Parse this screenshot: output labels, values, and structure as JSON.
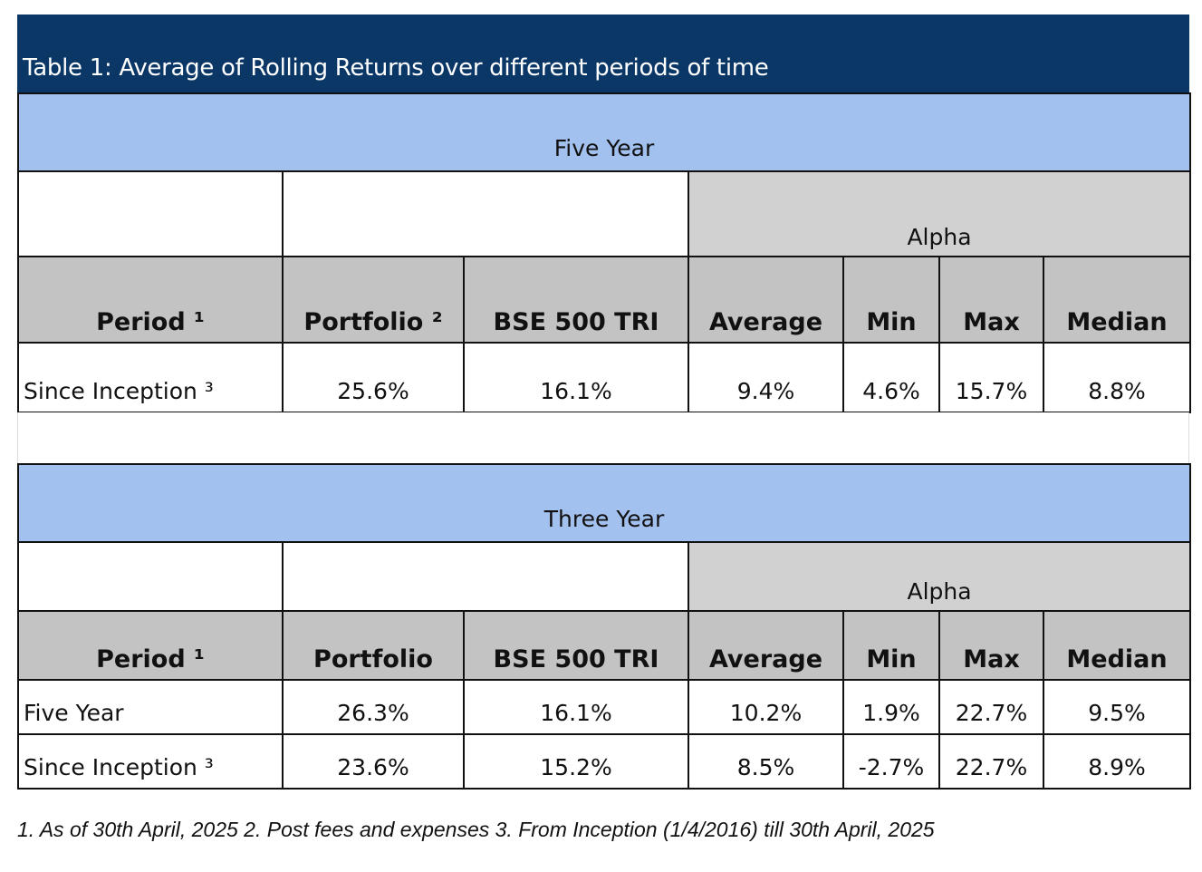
{
  "title": "Table 1: Average of Rolling Returns over different periods of time",
  "five_year": {
    "band_label": "Five Year",
    "alpha_label": "Alpha",
    "headers": [
      "Period ¹",
      "Portfolio ²",
      "BSE 500 TRI",
      "Average",
      "Min",
      "Max",
      "Median"
    ],
    "rows": [
      {
        "period": "Since Inception ³",
        "portfolio": "25.6%",
        "bse500": "16.1%",
        "average": "9.4%",
        "min": "4.6%",
        "max": "15.7%",
        "median": "8.8%"
      }
    ]
  },
  "three_year": {
    "band_label": "Three Year",
    "alpha_label": "Alpha",
    "headers": [
      "Period ¹",
      "Portfolio",
      "BSE 500 TRI",
      "Average",
      "Min",
      "Max",
      "Median"
    ],
    "rows": [
      {
        "period": "Five Year",
        "portfolio": "26.3%",
        "bse500": "16.1%",
        "average": "10.2%",
        "min": "1.9%",
        "max": "22.7%",
        "median": "9.5%"
      },
      {
        "period": "Since Inception ³",
        "portfolio": "23.6%",
        "bse500": "15.2%",
        "average": "8.5%",
        "min": "-2.7%",
        "max": "22.7%",
        "median": "8.9%"
      }
    ]
  },
  "footnote": "1. As of 30th April, 2025 2. Post fees and expenses 3. From Inception (1/4/2016) till 30th April, 2025",
  "colors": {
    "title_bg": "#0b3766",
    "band_bg": "#a3c1ef",
    "header_bg": "#c3c3c3",
    "alpha_bg": "#d1d1d1"
  }
}
